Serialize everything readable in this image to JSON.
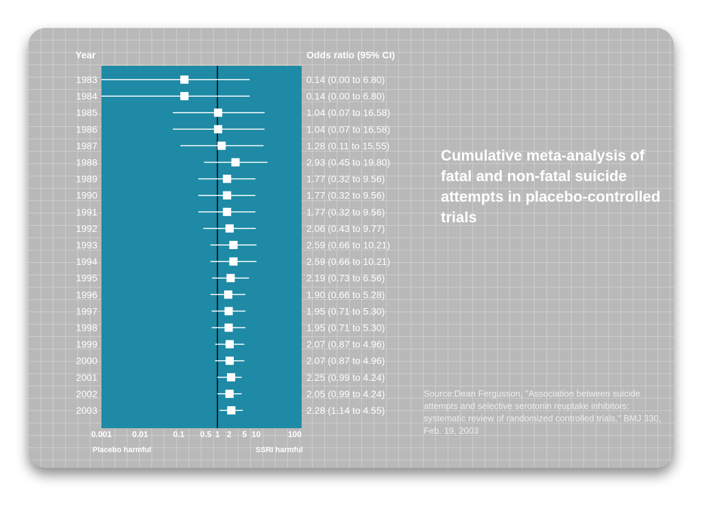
{
  "headers": {
    "year": "Year",
    "odds": "Odds ratio (95% CI)"
  },
  "title": "Cumulative meta-analysis of fatal and non-fatal suicide attempts in placebo-controlled trials",
  "source": "Source:Dean Fergusson, \"Association between suicide attempts and selective serotonin reuptake inhibitors: systematic review of randomized controlled trials.\" BMJ 330, Feb. 19, 2003",
  "colors": {
    "panel": "#1e8aa5",
    "background": "#b9b9b9",
    "marker": "#ffffff",
    "reference": "#000000"
  },
  "chart_data": {
    "type": "scatter",
    "x_scale": "log",
    "xlim": [
      0.001,
      100
    ],
    "reference_line": 1,
    "x_ticks": [
      {
        "value": 0.001,
        "label": "0.001"
      },
      {
        "value": 0.01,
        "label": "0.01"
      },
      {
        "value": 0.1,
        "label": "0.1"
      },
      {
        "value": 0.5,
        "label": "0.5"
      },
      {
        "value": 1,
        "label": "1"
      },
      {
        "value": 2,
        "label": "2"
      },
      {
        "value": 5,
        "label": "5"
      },
      {
        "value": 10,
        "label": "10"
      },
      {
        "value": 100,
        "label": "100"
      }
    ],
    "x_left_label": "Placebo harmful",
    "x_right_label": "SSRI harmful",
    "rows": [
      {
        "year": "1983",
        "or": 0.14,
        "lo": 0.0,
        "hi": 6.8,
        "text": "0.14 (0.00 to 6.80)"
      },
      {
        "year": "1984",
        "or": 0.14,
        "lo": 0.0,
        "hi": 6.8,
        "text": "0.14 (0.00 to 6.80)"
      },
      {
        "year": "1985",
        "or": 1.04,
        "lo": 0.07,
        "hi": 16.58,
        "text": "1.04 (0.07 to 16.58)"
      },
      {
        "year": "1986",
        "or": 1.04,
        "lo": 0.07,
        "hi": 16.58,
        "text": "1.04 (0.07 to 16.58)"
      },
      {
        "year": "1987",
        "or": 1.28,
        "lo": 0.11,
        "hi": 15.55,
        "text": "1.28 (0.11 to 15.55)"
      },
      {
        "year": "1988",
        "or": 2.93,
        "lo": 0.45,
        "hi": 19.8,
        "text": "2.93 (0.45 to 19.80)"
      },
      {
        "year": "1989",
        "or": 1.77,
        "lo": 0.32,
        "hi": 9.56,
        "text": "1.77 (0.32 to 9.56)"
      },
      {
        "year": "1990",
        "or": 1.77,
        "lo": 0.32,
        "hi": 9.56,
        "text": "1.77 (0.32 to 9.56)"
      },
      {
        "year": "1991",
        "or": 1.77,
        "lo": 0.32,
        "hi": 9.56,
        "text": "1.77 (0.32 to 9.56)"
      },
      {
        "year": "1992",
        "or": 2.06,
        "lo": 0.43,
        "hi": 9.77,
        "text": "2.06 (0.43 to 9.77)"
      },
      {
        "year": "1993",
        "or": 2.59,
        "lo": 0.66,
        "hi": 10.21,
        "text": "2.59 (0.66 to 10.21)"
      },
      {
        "year": "1994",
        "or": 2.59,
        "lo": 0.66,
        "hi": 10.21,
        "text": "2.59 (0.66 to 10.21)"
      },
      {
        "year": "1995",
        "or": 2.19,
        "lo": 0.73,
        "hi": 6.56,
        "text": "2.19 (0.73 to 6.56)"
      },
      {
        "year": "1996",
        "or": 1.9,
        "lo": 0.66,
        "hi": 5.28,
        "text": "1.90 (0.66 to 5.28)"
      },
      {
        "year": "1997",
        "or": 1.95,
        "lo": 0.71,
        "hi": 5.3,
        "text": "1.95 (0.71 to 5.30)"
      },
      {
        "year": "1998",
        "or": 1.95,
        "lo": 0.71,
        "hi": 5.3,
        "text": "1.95 (0.71 to 5.30)"
      },
      {
        "year": "1999",
        "or": 2.07,
        "lo": 0.87,
        "hi": 4.96,
        "text": "2.07 (0.87 to 4.96)"
      },
      {
        "year": "2000",
        "or": 2.07,
        "lo": 0.87,
        "hi": 4.96,
        "text": "2.07 (0.87 to 4.96)"
      },
      {
        "year": "2001",
        "or": 2.25,
        "lo": 0.99,
        "hi": 4.24,
        "text": "2.25 (0.99 to 4.24)"
      },
      {
        "year": "2002",
        "or": 2.05,
        "lo": 0.99,
        "hi": 4.24,
        "text": "2.05 (0.99 to 4.24)"
      },
      {
        "year": "2003",
        "or": 2.28,
        "lo": 1.14,
        "hi": 4.55,
        "text": "2.28 (1.14 to 4.55)"
      }
    ]
  }
}
